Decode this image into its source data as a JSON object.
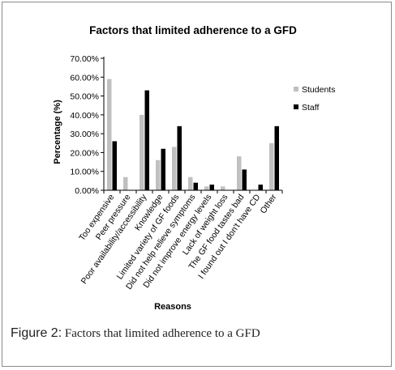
{
  "figure": {
    "caption_label": "Figure 2:",
    "caption_text": " Factors that limited adherence to a GFD"
  },
  "chart_data": {
    "type": "bar",
    "title": "Factors that limited adherence to a GFD",
    "xlabel": "Reasons",
    "ylabel": "Percentage (%)",
    "ylim": [
      0,
      70
    ],
    "yticks": [
      "0.00%",
      "10.00%",
      "20.00%",
      "30.00%",
      "40.00%",
      "50.00%",
      "60.00%",
      "70.00%"
    ],
    "categories": [
      "Too expensive",
      "Peer pressure",
      "Poor availability/accessibility",
      "Knowledge",
      "Limited variety of GF foods",
      "Did not help relieve symptoms",
      "Did not improve energy levels",
      "Lack of weight loss",
      "The GF food tastes bad",
      "I found out I don't have CD",
      "Other"
    ],
    "series": [
      {
        "name": "Students",
        "color": "#c0c0c0",
        "values": [
          59,
          7,
          40,
          16,
          23,
          7,
          2,
          2,
          18,
          0,
          25
        ]
      },
      {
        "name": "Staff",
        "color": "#000000",
        "values": [
          26,
          0,
          53,
          22,
          34,
          4,
          3,
          0,
          11,
          3,
          34
        ]
      }
    ],
    "grid": false,
    "legend_position": "right"
  }
}
